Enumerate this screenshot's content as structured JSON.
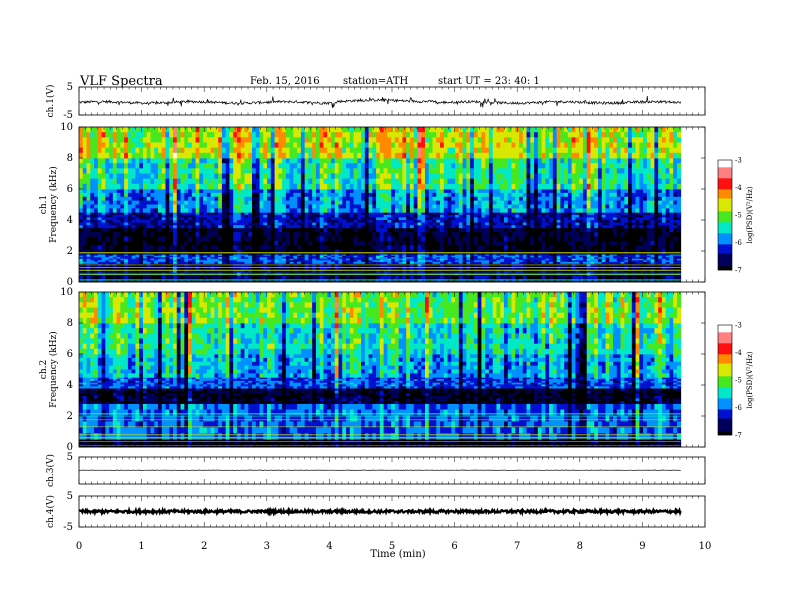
{
  "header": {
    "title": "VLF  Spectra",
    "date": "Feb. 15, 2016",
    "station": "station=ATH",
    "start": "start  UT  =    23: 40: 1"
  },
  "chart_data": [
    {
      "type": "line",
      "name": "ch1-waveform",
      "ylabel": "ch.1(V)",
      "ylim": [
        -5,
        5
      ],
      "yticks": [
        "5",
        "-5"
      ],
      "xlim": [
        0,
        10
      ],
      "description_values": {
        "baseline_V": -0.5,
        "spike_range_V": [
          -3,
          2
        ]
      }
    },
    {
      "type": "heatmap",
      "name": "ch1-spectrogram",
      "ylabel_channel": "ch.1",
      "ylabel": "Frequency  (kHz)",
      "ylim": [
        0,
        10
      ],
      "yticks": [
        "0",
        "2",
        "4",
        "6",
        "8",
        "10"
      ],
      "xlim": [
        0,
        9.8
      ],
      "bands": [
        {
          "from_kHz": 0.0,
          "to_kHz": 1.2,
          "logPSD": -6.6
        },
        {
          "from_kHz": 1.2,
          "to_kHz": 1.8,
          "logPSD": -6.0
        },
        {
          "from_kHz": 1.8,
          "to_kHz": 3.5,
          "logPSD": -6.8
        },
        {
          "from_kHz": 3.5,
          "to_kHz": 4.5,
          "logPSD": -6.3
        },
        {
          "from_kHz": 4.5,
          "to_kHz": 6.0,
          "logPSD": -5.7
        },
        {
          "from_kHz": 6.0,
          "to_kHz": 8.0,
          "logPSD": -5.2
        },
        {
          "from_kHz": 8.0,
          "to_kHz": 10.0,
          "logPSD": -4.6
        }
      ],
      "colorbar": {
        "label": "log(PSD)(V²/Hz)",
        "min": -7,
        "max": -3,
        "ticks": [
          "-3",
          "-4",
          "-5",
          "-6",
          "-7"
        ]
      }
    },
    {
      "type": "heatmap",
      "name": "ch2-spectrogram",
      "ylabel_channel": "ch.2",
      "ylabel": "Frequency  (kHz)",
      "ylim": [
        0,
        10
      ],
      "yticks": [
        "0",
        "2",
        "4",
        "6",
        "8",
        "10"
      ],
      "xlim": [
        0,
        9.8
      ],
      "bands": [
        {
          "from_kHz": 0.0,
          "to_kHz": 0.5,
          "logPSD": -6.9
        },
        {
          "from_kHz": 0.5,
          "to_kHz": 2.8,
          "logPSD": -5.9
        },
        {
          "from_kHz": 2.8,
          "to_kHz": 3.8,
          "logPSD": -6.8
        },
        {
          "from_kHz": 3.8,
          "to_kHz": 4.5,
          "logPSD": -6.0
        },
        {
          "from_kHz": 4.5,
          "to_kHz": 6.0,
          "logPSD": -5.6
        },
        {
          "from_kHz": 6.0,
          "to_kHz": 8.0,
          "logPSD": -5.3
        },
        {
          "from_kHz": 8.0,
          "to_kHz": 10.0,
          "logPSD": -4.9
        }
      ],
      "colorbar": {
        "label": "log(PSD)(V²/Hz)",
        "min": -7,
        "max": -3,
        "ticks": [
          "-3",
          "-4",
          "-5",
          "-6",
          "-7"
        ]
      }
    },
    {
      "type": "line",
      "name": "ch3-waveform",
      "ylabel": "ch.3(V)",
      "ylim": [
        -5,
        5
      ],
      "yticks": [
        "5"
      ],
      "xlim": [
        0,
        10
      ],
      "description_values": {
        "baseline_V": 0.1
      }
    },
    {
      "type": "line",
      "name": "ch4-waveform",
      "ylabel": "ch.4(V)",
      "ylim": [
        -5,
        5
      ],
      "yticks": [
        "5",
        "-5"
      ],
      "xlim": [
        0,
        10
      ],
      "description_values": {
        "baseline_V": 0.0
      }
    }
  ],
  "xaxis": {
    "label": "Time  (min)",
    "ticks": [
      "0",
      "1",
      "2",
      "3",
      "4",
      "5",
      "6",
      "7",
      "8",
      "9",
      "10"
    ],
    "xlim": [
      0,
      10
    ]
  },
  "colormap": [
    "#000000",
    "#00005a",
    "#0010d0",
    "#0090ff",
    "#00e8c8",
    "#48e820",
    "#d8e800",
    "#ff8a00",
    "#ff1010",
    "#ff8080",
    "#ffffff"
  ]
}
